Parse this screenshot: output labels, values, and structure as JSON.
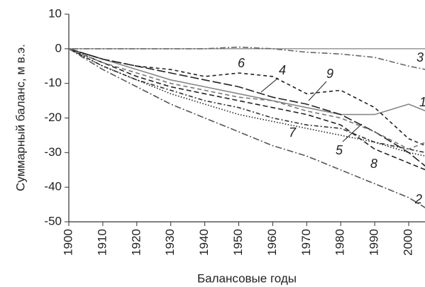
{
  "chart_data": {
    "type": "line",
    "y_label": "Суммарный баланс, м в.э.",
    "x_label": "Балансовые годы",
    "x": [
      1900,
      1910,
      1920,
      1930,
      1940,
      1950,
      1960,
      1970,
      1980,
      1990,
      2000,
      2005
    ],
    "xlim": [
      1900,
      2005
    ],
    "ylim": [
      -50,
      10
    ],
    "xticks": [
      1900,
      1910,
      1920,
      1930,
      1940,
      1950,
      1960,
      1970,
      1980,
      1990,
      2000
    ],
    "yticks": [
      -50,
      -40,
      -30,
      -20,
      -10,
      0,
      10
    ],
    "series": [
      {
        "name": "1",
        "color": "#888888",
        "values": [
          0,
          -3,
          -6,
          -9,
          -11,
          -13,
          -15,
          -17,
          -19,
          -19,
          -16,
          -18
        ]
      },
      {
        "name": "2",
        "color": "#555555",
        "values": [
          0,
          -6,
          -11,
          -16,
          -20,
          -24,
          -28,
          -31,
          -35,
          -39,
          -43,
          -46
        ]
      },
      {
        "name": "3",
        "color": "#666666",
        "values": [
          0,
          0,
          0,
          0,
          0,
          0.5,
          0,
          -1,
          -1.5,
          -2.5,
          -5,
          -6
        ]
      },
      {
        "name": "4",
        "color": "#222222",
        "values": [
          0,
          -3,
          -5,
          -7,
          -9,
          -11,
          -14,
          -16,
          -19,
          -24,
          -30,
          -34
        ]
      },
      {
        "name": "5",
        "color": "#333333",
        "values": [
          0,
          -5,
          -9,
          -12,
          -15,
          -17,
          -20,
          -22,
          -23,
          -27,
          -29,
          -30
        ]
      },
      {
        "name": "6",
        "color": "#222222",
        "values": [
          0,
          -3,
          -5,
          -6,
          -8,
          -7,
          -8,
          -13,
          -12,
          -17,
          -26,
          -28
        ]
      },
      {
        "name": "7",
        "color": "#222222",
        "values": [
          0,
          -5,
          -9,
          -13,
          -16,
          -19,
          -21,
          -23,
          -25,
          -27,
          -30,
          -31
        ]
      },
      {
        "name": "8",
        "color": "#222222",
        "values": [
          0,
          -4,
          -8,
          -11,
          -13,
          -15,
          -17,
          -19,
          -22,
          -29,
          -33,
          -35
        ]
      },
      {
        "name": "9",
        "color": "#777777",
        "values": [
          0,
          -4,
          -7,
          -10,
          -12,
          -14,
          -15,
          -18,
          -20,
          -24,
          -29,
          -27
        ]
      }
    ]
  }
}
